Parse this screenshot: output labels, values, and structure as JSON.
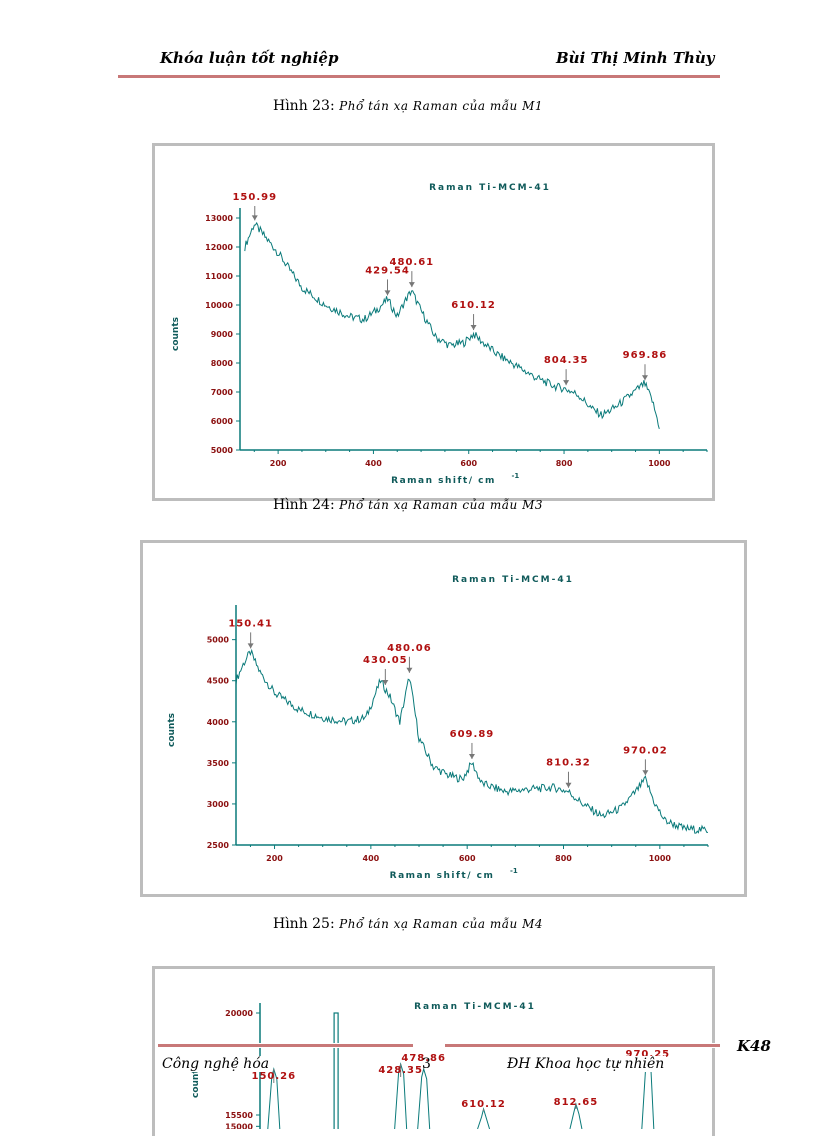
{
  "header": {
    "left": "Khóa luận tốt nghiệp",
    "right": "Bùi Thị Minh Thùy"
  },
  "captions": [
    {
      "label": "Hình 23",
      "text": "Phổ tán xạ Raman của mẫu M1"
    },
    {
      "label": "Hình 24",
      "text": "Phổ tán xạ Raman của mẫu M3"
    },
    {
      "label": "Hình 25",
      "text": "Phổ tán xạ Raman của mẫu M4"
    }
  ],
  "chart_data": [
    {
      "type": "line",
      "title": "Raman Ti-MCM-41",
      "xlabel": "Raman shift/ cm",
      "xlabel_sup": "-1",
      "ylabel": "counts",
      "xlim": [
        120,
        1100
      ],
      "ylim": [
        5000,
        13000
      ],
      "xticks": [
        200,
        400,
        600,
        800,
        1000
      ],
      "xtick_labels": [
        "200",
        "400",
        "600",
        "800",
        "1000"
      ],
      "yticks": [
        5000,
        6000,
        7000,
        8000,
        9000,
        10000,
        11000,
        12000,
        13000
      ],
      "ytick_labels": [
        "5000",
        "6000",
        "7000",
        "8000",
        "9000",
        "10000",
        "11000",
        "12000",
        "13000"
      ],
      "x": [
        130,
        150,
        175,
        200,
        250,
        300,
        350,
        380,
        405,
        430,
        450,
        465,
        480,
        500,
        530,
        560,
        590,
        610,
        630,
        660,
        700,
        740,
        780,
        804,
        830,
        860,
        880,
        910,
        940,
        969,
        985,
        1000
      ],
      "y": [
        12000,
        12800,
        12300,
        11800,
        10600,
        10000,
        9600,
        9500,
        9800,
        10200,
        9600,
        10100,
        10500,
        9800,
        8900,
        8600,
        8700,
        9000,
        8700,
        8300,
        7900,
        7500,
        7200,
        7100,
        6900,
        6400,
        6200,
        6500,
        6900,
        7300,
        6700,
        5800
      ],
      "peaks": [
        {
          "x": 150.99,
          "label": "150.99"
        },
        {
          "x": 429.54,
          "label": "429.54"
        },
        {
          "x": 480.61,
          "label": "480.61"
        },
        {
          "x": 610.12,
          "label": "610.12"
        },
        {
          "x": 804.35,
          "label": "804.35"
        },
        {
          "x": 969.86,
          "label": "969.86"
        }
      ]
    },
    {
      "type": "line",
      "title": "Raman Ti-MCM-41",
      "xlabel": "Raman shift/ cm",
      "xlabel_sup": "-1",
      "ylabel": "counts",
      "xlim": [
        120,
        1100
      ],
      "ylim": [
        2500,
        5300
      ],
      "xticks": [
        200,
        400,
        600,
        800,
        1000
      ],
      "xtick_labels": [
        "200",
        "400",
        "600",
        "800",
        "1000"
      ],
      "yticks": [
        2500,
        3000,
        3500,
        4000,
        4500,
        5000
      ],
      "ytick_labels": [
        "2500",
        "3000",
        "3500",
        "4000",
        "4500",
        "5000"
      ],
      "x": [
        120,
        135,
        150,
        170,
        200,
        250,
        300,
        350,
        390,
        420,
        440,
        460,
        480,
        500,
        530,
        560,
        590,
        610,
        630,
        680,
        730,
        780,
        810,
        840,
        880,
        920,
        950,
        970,
        990,
        1010,
        1050,
        1100
      ],
      "y": [
        4500,
        4700,
        4850,
        4600,
        4350,
        4150,
        4050,
        4000,
        4050,
        4500,
        4300,
        4000,
        4550,
        3800,
        3450,
        3350,
        3300,
        3500,
        3250,
        3150,
        3180,
        3200,
        3150,
        3000,
        2850,
        2950,
        3150,
        3300,
        3000,
        2800,
        2700,
        2680
      ],
      "peaks": [
        {
          "x": 150.41,
          "label": "150.41"
        },
        {
          "x": 430.05,
          "label": "430.05"
        },
        {
          "x": 480.06,
          "label": "480.06"
        },
        {
          "x": 609.89,
          "label": "609.89"
        },
        {
          "x": 810.32,
          "label": "810.32"
        },
        {
          "x": 970.02,
          "label": "970.02"
        }
      ]
    },
    {
      "type": "line",
      "title": "Raman Ti-MCM-41",
      "ylabel": "counts",
      "xlim": [
        120,
        1100
      ],
      "ylim": [
        14000,
        20000
      ],
      "yticks": [
        15000,
        15500,
        20000
      ],
      "ytick_labels": [
        "15000",
        "15500",
        "20000"
      ],
      "peaks": [
        {
          "x": 150.26,
          "label": "150.26"
        },
        {
          "x": 428.35,
          "label": "428.35"
        },
        {
          "x": 478.86,
          "label": "478.86"
        },
        {
          "x": 610.12,
          "label": "610.12"
        },
        {
          "x": 812.65,
          "label": "812.65"
        },
        {
          "x": 970.25,
          "label": "970.25"
        }
      ]
    }
  ],
  "footer": {
    "course": "K48",
    "left": "Công nghệ hóa",
    "page": "3",
    "right": "ĐH Khoa học tự nhiên"
  },
  "colors": {
    "series": "#0a7a7a",
    "peak_label": "#b01010",
    "title": "#0f5a5a",
    "axis": "#0a7a7a"
  }
}
